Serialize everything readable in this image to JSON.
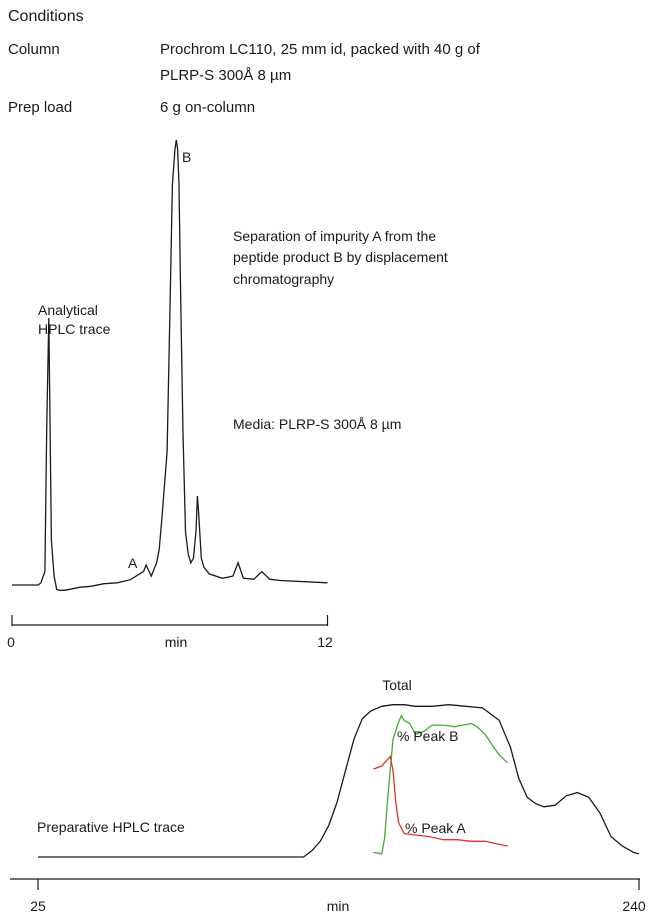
{
  "conditions": {
    "title": "Conditions",
    "rows": [
      {
        "label": "Column",
        "value_line1": "Prochrom LC110, 25 mm id, packed with 40 g of",
        "value_line2": "PLRP-S 300Å 8 µm"
      },
      {
        "label": "Prep load",
        "value_line1": "6 g on-column",
        "value_line2": ""
      }
    ]
  },
  "chart_data": [
    {
      "type": "line",
      "name": "analytical",
      "annotations": {
        "trace_label_line1": "Analytical",
        "trace_label_line2": "HPLC trace",
        "description_line1": "Separation of impurity A from the",
        "description_line2": "peptide product B by displacement",
        "description_line3": "chromatography",
        "media": "Media: PLRP-S 300Å 8 µm",
        "peak_A": "A",
        "peak_B": "B"
      },
      "xlabel": "min",
      "xlim": [
        0,
        12
      ],
      "tick_labels": [
        "0",
        "12"
      ],
      "ylim": [
        0,
        100
      ],
      "series": [
        {
          "x": [
            0.0,
            1.0,
            1.1,
            1.25,
            1.32,
            1.4,
            1.5,
            1.6,
            1.7,
            1.8,
            2.0,
            2.6,
            3.0,
            3.5,
            4.0,
            4.5,
            5.0,
            5.1,
            5.3,
            5.5,
            5.6,
            5.7,
            5.9,
            6.0,
            6.1,
            6.2,
            6.25,
            6.3,
            6.35,
            6.4,
            6.5,
            6.6,
            6.7,
            6.8,
            6.9,
            7.0,
            7.05,
            7.1,
            7.2,
            7.3,
            7.5,
            8.0,
            8.4,
            8.6,
            8.8,
            9.2,
            9.5,
            9.8,
            10.2,
            12.0
          ],
          "y": [
            0,
            0,
            0.5,
            3,
            35,
            60,
            10,
            2,
            -1,
            -1.2,
            -1.2,
            -0.5,
            -0.3,
            0.3,
            0.5,
            1.2,
            3,
            4.5,
            2,
            5,
            8,
            15,
            30,
            60,
            90,
            98,
            100,
            98,
            90,
            70,
            35,
            12,
            7,
            5,
            6,
            12,
            20,
            16,
            6,
            4,
            2.5,
            1.5,
            2,
            5,
            1.5,
            1.3,
            3,
            1.3,
            1,
            0.5
          ]
        }
      ]
    },
    {
      "type": "line",
      "name": "preparative",
      "annotations": {
        "trace_label": "Preparative HPLC trace",
        "total": "Total",
        "peak_B": "% Peak B",
        "peak_A": "% Peak A"
      },
      "xlabel": "min",
      "xlim": [
        25,
        240
      ],
      "tick_labels": [
        "25",
        "240"
      ],
      "ylim": [
        0,
        100
      ],
      "series": [
        {
          "name": "Total",
          "color": "#1a1a1a",
          "x": [
            25,
            120,
            123,
            126,
            129,
            132,
            135,
            138,
            141,
            144,
            148,
            152,
            156,
            160,
            166,
            172,
            178,
            184,
            190,
            194,
            197,
            200,
            203,
            206,
            210,
            214,
            218,
            222,
            226,
            230,
            234,
            238,
            240
          ],
          "y": [
            0,
            0,
            4,
            10,
            20,
            35,
            55,
            75,
            88,
            93,
            96,
            97,
            97,
            96,
            96,
            97,
            96,
            95,
            87,
            70,
            50,
            38,
            34,
            32,
            33,
            39,
            41,
            38,
            28,
            13,
            7,
            3,
            2
          ]
        },
        {
          "name": "% Peak B",
          "color": "#4aa63a",
          "x": [
            145,
            148,
            149,
            150,
            151,
            152,
            154,
            155,
            156,
            158,
            160,
            163,
            166,
            170,
            174,
            177,
            180,
            182,
            185,
            188,
            190,
            193
          ],
          "y": [
            3,
            2,
            12,
            35,
            55,
            75,
            86,
            90,
            87,
            85,
            78,
            80,
            84,
            84,
            83,
            84,
            85,
            83,
            78,
            70,
            65,
            60
          ]
        },
        {
          "name": "% Peak A",
          "color": "#e03030",
          "x": [
            145,
            148,
            150,
            151,
            152,
            153,
            154,
            156,
            160,
            165,
            170,
            175,
            180,
            185,
            190,
            193
          ],
          "y": [
            56,
            58,
            62,
            64,
            55,
            35,
            22,
            15,
            14,
            13,
            11,
            11,
            10,
            10,
            8,
            7
          ]
        }
      ]
    }
  ]
}
